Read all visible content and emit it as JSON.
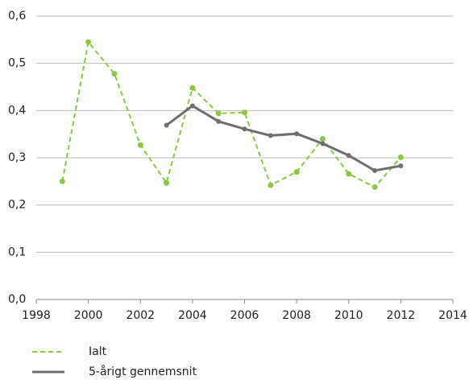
{
  "chart_data": {
    "type": "line",
    "x": [
      1999,
      2000,
      2001,
      2002,
      2003,
      2004,
      2005,
      2006,
      2007,
      2008,
      2009,
      2010,
      2011,
      2012
    ],
    "series": [
      {
        "name": "Ialt",
        "color": "#8dc63f",
        "dashed": true,
        "values": [
          0.25,
          0.545,
          0.478,
          0.327,
          0.247,
          0.448,
          0.394,
          0.396,
          0.242,
          0.27,
          0.34,
          0.266,
          0.238,
          0.301
        ]
      },
      {
        "name": "5-årigt gennemsnit",
        "color": "#6d6e71",
        "dashed": false,
        "values": [
          null,
          null,
          null,
          null,
          0.369,
          0.41,
          0.377,
          0.361,
          0.347,
          0.351,
          0.33,
          0.305,
          0.273,
          0.283
        ]
      }
    ],
    "xlim": [
      1998,
      2014
    ],
    "xticks": [
      1998,
      2000,
      2002,
      2004,
      2006,
      2008,
      2010,
      2012,
      2014
    ],
    "ylim": [
      0,
      0.6
    ],
    "yticks": [
      {
        "value": 0,
        "label": "0,0"
      },
      {
        "value": 0.1,
        "label": "0,1"
      },
      {
        "value": 0.2,
        "label": "0,2"
      },
      {
        "value": 0.3,
        "label": "0,3"
      },
      {
        "value": 0.4,
        "label": "0,4"
      },
      {
        "value": 0.5,
        "label": "0,5"
      },
      {
        "value": 0.6,
        "label": "0,6"
      }
    ],
    "grid": true
  }
}
